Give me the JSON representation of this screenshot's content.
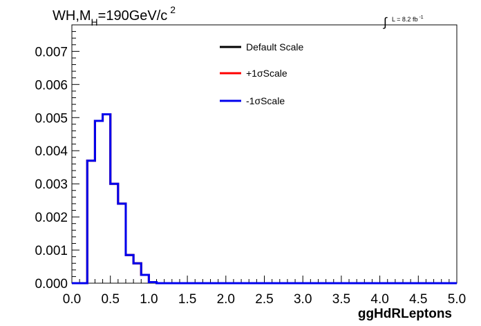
{
  "chart_data": {
    "type": "line",
    "title_parts": {
      "prefix": "WH,M",
      "sub": "H",
      "mid": "=190GeV/c",
      "sup": "2"
    },
    "lumi_parts": {
      "integral": "∫",
      "text": "L = 8.2 fb",
      "sup": "-1"
    },
    "xlabel": "ggHdRLeptons",
    "ylabel": "",
    "xlim": [
      0.0,
      5.0
    ],
    "ylim": [
      0.0,
      0.0078
    ],
    "x_ticks": [
      "0.0",
      "0.5",
      "1.0",
      "1.5",
      "2.0",
      "2.5",
      "3.0",
      "3.5",
      "4.0",
      "4.5",
      "5.0"
    ],
    "y_ticks": [
      "0.000",
      "0.001",
      "0.002",
      "0.003",
      "0.004",
      "0.005",
      "0.006",
      "0.007"
    ],
    "grid": false,
    "legend_position": "top-right",
    "bin_width": 0.1,
    "bin_edges_start": 0.0,
    "series": [
      {
        "name": "Default Scale",
        "color": "#000000",
        "values": [
          0,
          0,
          0.0037,
          0.0049,
          0.0051,
          0.003,
          0.0024,
          0.00085,
          0.0006,
          0.00025,
          3e-05,
          0,
          0,
          0,
          0,
          0,
          0,
          0,
          0,
          0,
          0,
          0,
          0,
          0,
          0,
          0,
          0,
          0,
          0,
          0,
          0,
          0,
          0,
          0,
          0,
          0,
          0,
          0,
          0,
          0,
          0,
          0,
          0,
          0,
          0,
          0,
          0,
          0,
          0,
          0
        ]
      },
      {
        "name": "+1σScale",
        "color": "#ff0000",
        "values": [
          0,
          0,
          0.0037,
          0.0049,
          0.0051,
          0.003,
          0.0024,
          0.00085,
          0.0006,
          0.00025,
          3e-05,
          0,
          0,
          0,
          0,
          0,
          0,
          0,
          0,
          0,
          0,
          0,
          0,
          0,
          0,
          0,
          0,
          0,
          0,
          0,
          0,
          0,
          0,
          0,
          0,
          0,
          0,
          0,
          0,
          0,
          0,
          0,
          0,
          0,
          0,
          0,
          0,
          0,
          0,
          0
        ]
      },
      {
        "name": "-1σScale",
        "color": "#0000ee",
        "values": [
          0,
          0,
          0.0037,
          0.0049,
          0.0051,
          0.003,
          0.0024,
          0.00085,
          0.0006,
          0.00025,
          3e-05,
          0,
          0,
          0,
          0,
          0,
          0,
          0,
          0,
          0,
          0,
          0,
          0,
          0,
          0,
          0,
          0,
          0,
          0,
          0,
          0,
          0,
          0,
          0,
          0,
          0,
          0,
          0,
          0,
          0,
          0,
          0,
          0,
          0,
          0,
          0,
          0,
          0,
          0,
          0
        ]
      }
    ]
  }
}
